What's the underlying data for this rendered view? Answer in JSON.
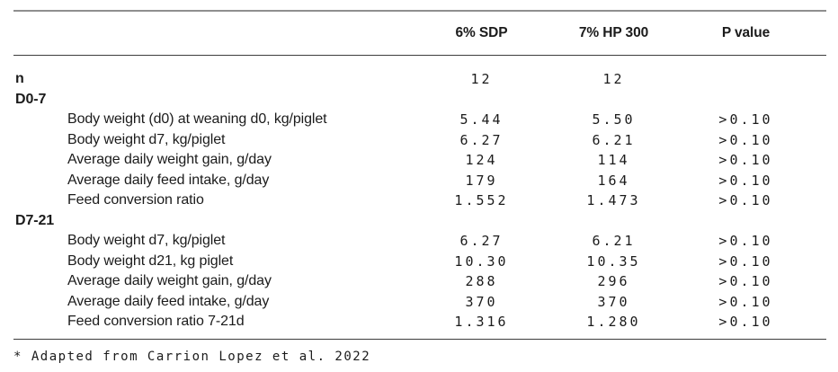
{
  "table": {
    "columns": [
      {
        "label": "6% SDP"
      },
      {
        "label": "7% HP 300"
      },
      {
        "label": "P value"
      }
    ],
    "n_row": {
      "label": "n",
      "v1": "12",
      "v2": "12",
      "p": ""
    },
    "sections": [
      {
        "header": "D0-7",
        "rows": [
          {
            "label": "Body weight (d0) at weaning d0, kg/piglet",
            "v1": "5.44",
            "v2": "5.50",
            "p": ">0.10"
          },
          {
            "label": "Body weight d7, kg/piglet",
            "v1": "6.27",
            "v2": "6.21",
            "p": ">0.10"
          },
          {
            "label": "Average daily weight gain, g/day",
            "v1": "124",
            "v2": "114",
            "p": ">0.10"
          },
          {
            "label": "Average daily feed intake, g/day",
            "v1": "179",
            "v2": "164",
            "p": ">0.10"
          },
          {
            "label": "Feed conversion ratio",
            "v1": "1.552",
            "v2": "1.473",
            "p": ">0.10"
          }
        ]
      },
      {
        "header": "D7-21",
        "rows": [
          {
            "label": "Body weight d7, kg/piglet",
            "v1": "6.27",
            "v2": "6.21",
            "p": ">0.10"
          },
          {
            "label": "Body weight d21, kg piglet",
            "v1": "10.30",
            "v2": "10.35",
            "p": ">0.10"
          },
          {
            "label": "Average daily weight gain, g/day",
            "v1": "288",
            "v2": "296",
            "p": ">0.10"
          },
          {
            "label": "Average daily feed intake, g/day",
            "v1": "370",
            "v2": "370",
            "p": ">0.10"
          },
          {
            "label": "Feed conversion ratio 7-21d",
            "v1": "1.316",
            "v2": "1.280",
            "p": ">0.10"
          }
        ]
      }
    ],
    "footnote": "* Adapted from Carrion Lopez et al. 2022"
  },
  "colors": {
    "rule_top": "#8f8f8f",
    "rule_dark": "#3c3c3c",
    "text": "#1b1b1b"
  }
}
